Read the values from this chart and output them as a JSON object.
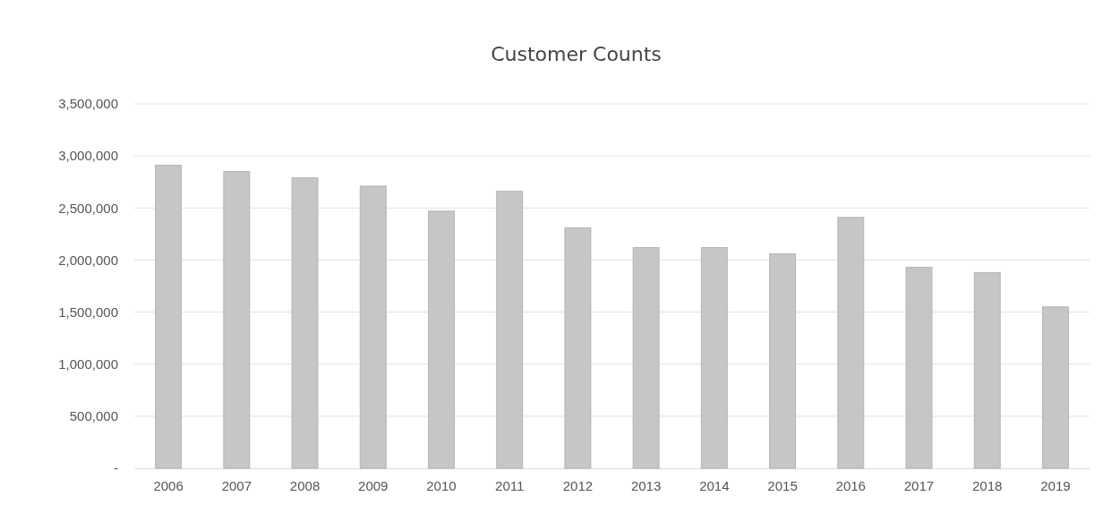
{
  "chart_data": {
    "type": "bar",
    "title": "Customer Counts",
    "categories": [
      "2006",
      "2007",
      "2008",
      "2009",
      "2010",
      "2011",
      "2012",
      "2013",
      "2014",
      "2015",
      "2016",
      "2017",
      "2018",
      "2019"
    ],
    "values": [
      2910000,
      2850000,
      2790000,
      2710000,
      2470000,
      2660000,
      2310000,
      2120000,
      2120000,
      2060000,
      2410000,
      1930000,
      1880000,
      1550000
    ],
    "color": "#c6c6c6",
    "ylim": [
      0,
      3500000
    ],
    "yticks": [
      {
        "value": 0,
        "label": "-"
      },
      {
        "value": 500000,
        "label": "500,000"
      },
      {
        "value": 1000000,
        "label": "1,000,000"
      },
      {
        "value": 1500000,
        "label": "1,500,000"
      },
      {
        "value": 2000000,
        "label": "2,000,000"
      },
      {
        "value": 2500000,
        "label": "2,500,000"
      },
      {
        "value": 3000000,
        "label": "3,000,000"
      },
      {
        "value": 3500000,
        "label": "3,500,000"
      }
    ],
    "grid": "y"
  }
}
